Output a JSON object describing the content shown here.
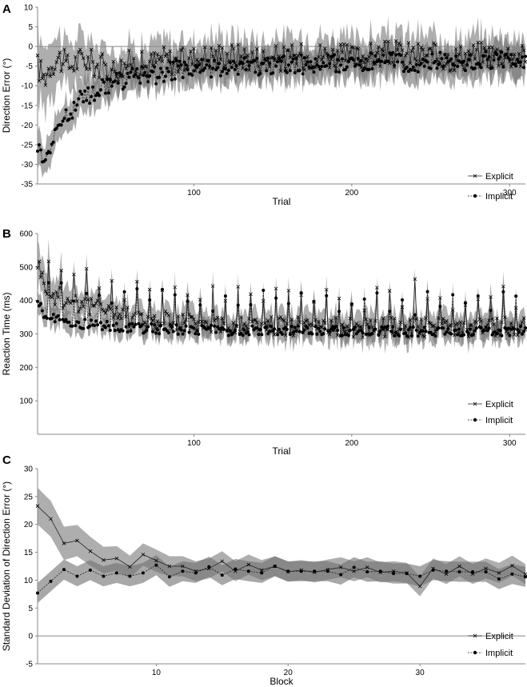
{
  "chart_data": [
    {
      "type": "line",
      "panel_letter": "A",
      "xlabel": "Trial",
      "ylabel": "Direction Error (°)",
      "xlim": [
        1,
        310
      ],
      "ylim": [
        -35,
        10
      ],
      "yticks": [
        10,
        5,
        0,
        -5,
        -10,
        -15,
        -20,
        -25,
        -30,
        -35
      ],
      "xticks": [
        100,
        200,
        300
      ],
      "grid": false,
      "legend": "bottom-right",
      "shaded_band": true,
      "band_color": "#a0a0a0",
      "overlap_color": "#6e6e6e",
      "series": [
        {
          "name": "Explicit",
          "marker": "x",
          "line": "solid",
          "x": [
            1,
            5,
            10,
            15,
            20,
            25,
            30,
            40,
            50,
            60,
            70,
            80,
            90,
            100,
            120,
            140,
            160,
            180,
            200,
            220,
            240,
            260,
            280,
            300,
            310
          ],
          "y": [
            -5,
            -8,
            -4,
            -3,
            -5,
            -4,
            -3,
            -5,
            -6,
            -4,
            -5,
            -3,
            -4,
            -3,
            -2,
            -3,
            -3,
            -2,
            -3,
            -2,
            -2,
            -3,
            -2,
            -2,
            -3
          ],
          "band_halfwidth": [
            9,
            8,
            7,
            6.5,
            6,
            6,
            5.5,
            5,
            5,
            5,
            5,
            5,
            5,
            5,
            5,
            5,
            5,
            5,
            5,
            5,
            5,
            5,
            5,
            5,
            5
          ]
        },
        {
          "name": "Implicit",
          "marker": "dot",
          "line": "dotted",
          "x": [
            1,
            5,
            10,
            15,
            20,
            25,
            30,
            40,
            50,
            60,
            70,
            80,
            90,
            100,
            120,
            140,
            160,
            180,
            200,
            220,
            240,
            260,
            280,
            300,
            310
          ],
          "y": [
            -25,
            -28,
            -25,
            -20,
            -17,
            -15,
            -13,
            -11,
            -9,
            -8,
            -7,
            -7,
            -6,
            -6,
            -5,
            -5,
            -4.5,
            -4.5,
            -4,
            -4,
            -4,
            -4,
            -3.5,
            -3.5,
            -3.5
          ],
          "band_halfwidth": [
            4,
            4,
            4,
            4,
            4,
            4,
            4,
            4,
            4,
            4,
            4,
            4,
            4,
            4,
            4,
            4,
            4,
            4,
            4,
            4,
            4,
            4,
            4,
            4,
            4
          ]
        }
      ]
    },
    {
      "type": "line",
      "panel_letter": "B",
      "xlabel": "Trial",
      "ylabel": "Reaction Time (ms)",
      "xlim": [
        1,
        310
      ],
      "ylim": [
        0,
        600
      ],
      "yticks": [
        600,
        500,
        400,
        300,
        200,
        100
      ],
      "xticks": [
        100,
        200,
        300
      ],
      "grid": false,
      "legend": "bottom-right",
      "shaded_band": true,
      "band_color": "#a0a0a0",
      "overlap_color": "#6e6e6e",
      "series": [
        {
          "name": "Explicit",
          "marker": "x",
          "line": "solid",
          "x": [
            1,
            5,
            10,
            15,
            20,
            30,
            40,
            50,
            60,
            70,
            80,
            100,
            120,
            140,
            160,
            180,
            200,
            220,
            240,
            260,
            280,
            300,
            310
          ],
          "y": [
            520,
            450,
            420,
            410,
            400,
            390,
            370,
            360,
            350,
            340,
            340,
            335,
            330,
            330,
            325,
            325,
            320,
            320,
            320,
            320,
            320,
            320,
            320
          ],
          "band_halfwidth": [
            70,
            60,
            55,
            50,
            45,
            40,
            40,
            40,
            40,
            40,
            40,
            40,
            40,
            40,
            40,
            40,
            40,
            40,
            40,
            40,
            40,
            40,
            40
          ]
        },
        {
          "name": "Implicit",
          "marker": "dot",
          "line": "dotted",
          "x": [
            1,
            5,
            10,
            15,
            20,
            30,
            40,
            50,
            60,
            70,
            80,
            100,
            120,
            140,
            160,
            180,
            200,
            220,
            240,
            260,
            280,
            300,
            310
          ],
          "y": [
            400,
            360,
            350,
            345,
            340,
            330,
            325,
            320,
            320,
            315,
            315,
            312,
            310,
            310,
            310,
            310,
            308,
            308,
            308,
            308,
            308,
            308,
            308
          ],
          "band_halfwidth": [
            30,
            30,
            30,
            30,
            30,
            30,
            30,
            30,
            30,
            30,
            30,
            30,
            30,
            30,
            30,
            30,
            30,
            30,
            30,
            30,
            30,
            30,
            30
          ]
        }
      ]
    },
    {
      "type": "line",
      "panel_letter": "C",
      "xlabel": "Block",
      "ylabel": "Standard Deviation of Direction Error (°)",
      "xlim": [
        1,
        38
      ],
      "ylim": [
        -5,
        30
      ],
      "yticks": [
        30,
        25,
        20,
        15,
        10,
        5,
        0,
        -5
      ],
      "xticks": [
        10,
        20,
        30
      ],
      "grid": false,
      "legend": "bottom-right",
      "shaded_band": true,
      "band_color": "#a0a0a0",
      "overlap_color": "#6e6e6e",
      "series": [
        {
          "name": "Explicit",
          "marker": "x",
          "line": "solid",
          "x": [
            1,
            2,
            3,
            4,
            5,
            6,
            7,
            8,
            9,
            10,
            11,
            12,
            13,
            14,
            15,
            16,
            17,
            18,
            19,
            20,
            21,
            22,
            23,
            24,
            25,
            26,
            27,
            28,
            29,
            30,
            31,
            32,
            33,
            34,
            35,
            36,
            37,
            38
          ],
          "y": [
            23.3,
            21,
            16.6,
            17.1,
            15.2,
            13.6,
            13.9,
            12.4,
            14.6,
            13.5,
            12.5,
            12.5,
            11.6,
            12.1,
            13.4,
            11.6,
            12.8,
            11.8,
            12.5,
            11.5,
            11.8,
            11.4,
            11.9,
            12.3,
            11.6,
            12.3,
            11.4,
            11.6,
            11.3,
            8.9,
            12.1,
            11.1,
            12.5,
            11.1,
            12.1,
            11.3,
            12.6,
            11.1
          ],
          "band_halfwidth": [
            3.3,
            3.2,
            3,
            2.8,
            2.6,
            2.4,
            2.2,
            2,
            2,
            2,
            1.8,
            1.8,
            1.8,
            1.8,
            1.8,
            1.8,
            1.8,
            1.8,
            1.8,
            1.8,
            1.8,
            1.8,
            1.8,
            1.8,
            1.8,
            1.8,
            1.8,
            1.8,
            1.8,
            1.8,
            1.8,
            1.8,
            1.8,
            1.8,
            1.8,
            1.8,
            1.8,
            1.8
          ]
        },
        {
          "name": "Implicit",
          "marker": "dot",
          "line": "dotted",
          "x": [
            1,
            2,
            3,
            4,
            5,
            6,
            7,
            8,
            9,
            10,
            11,
            12,
            13,
            14,
            15,
            16,
            17,
            18,
            19,
            20,
            21,
            22,
            23,
            24,
            25,
            26,
            27,
            28,
            29,
            30,
            31,
            32,
            33,
            34,
            35,
            36,
            37,
            38
          ],
          "y": [
            7.7,
            9.8,
            11.9,
            10.7,
            11.8,
            10.7,
            11.3,
            10.7,
            11.3,
            12.7,
            10.6,
            11.6,
            11.3,
            12.4,
            10.9,
            12,
            11.6,
            11.3,
            12.5,
            11.6,
            11.6,
            11.6,
            11.6,
            11,
            12.3,
            11.5,
            11.6,
            11.2,
            11.2,
            10.7,
            11.8,
            11.6,
            11.5,
            11.5,
            11.5,
            10.2,
            11.1,
            10.6
          ],
          "band_halfwidth": [
            1.8,
            1.8,
            1.8,
            1.8,
            1.8,
            1.8,
            1.8,
            1.8,
            1.8,
            1.8,
            1.8,
            1.8,
            1.8,
            1.8,
            1.8,
            1.8,
            1.8,
            1.8,
            1.8,
            1.8,
            1.8,
            1.8,
            1.8,
            1.8,
            1.8,
            1.8,
            1.8,
            1.8,
            1.8,
            1.8,
            1.8,
            1.8,
            1.8,
            1.8,
            1.8,
            1.8,
            1.8,
            1.8
          ]
        }
      ]
    }
  ]
}
